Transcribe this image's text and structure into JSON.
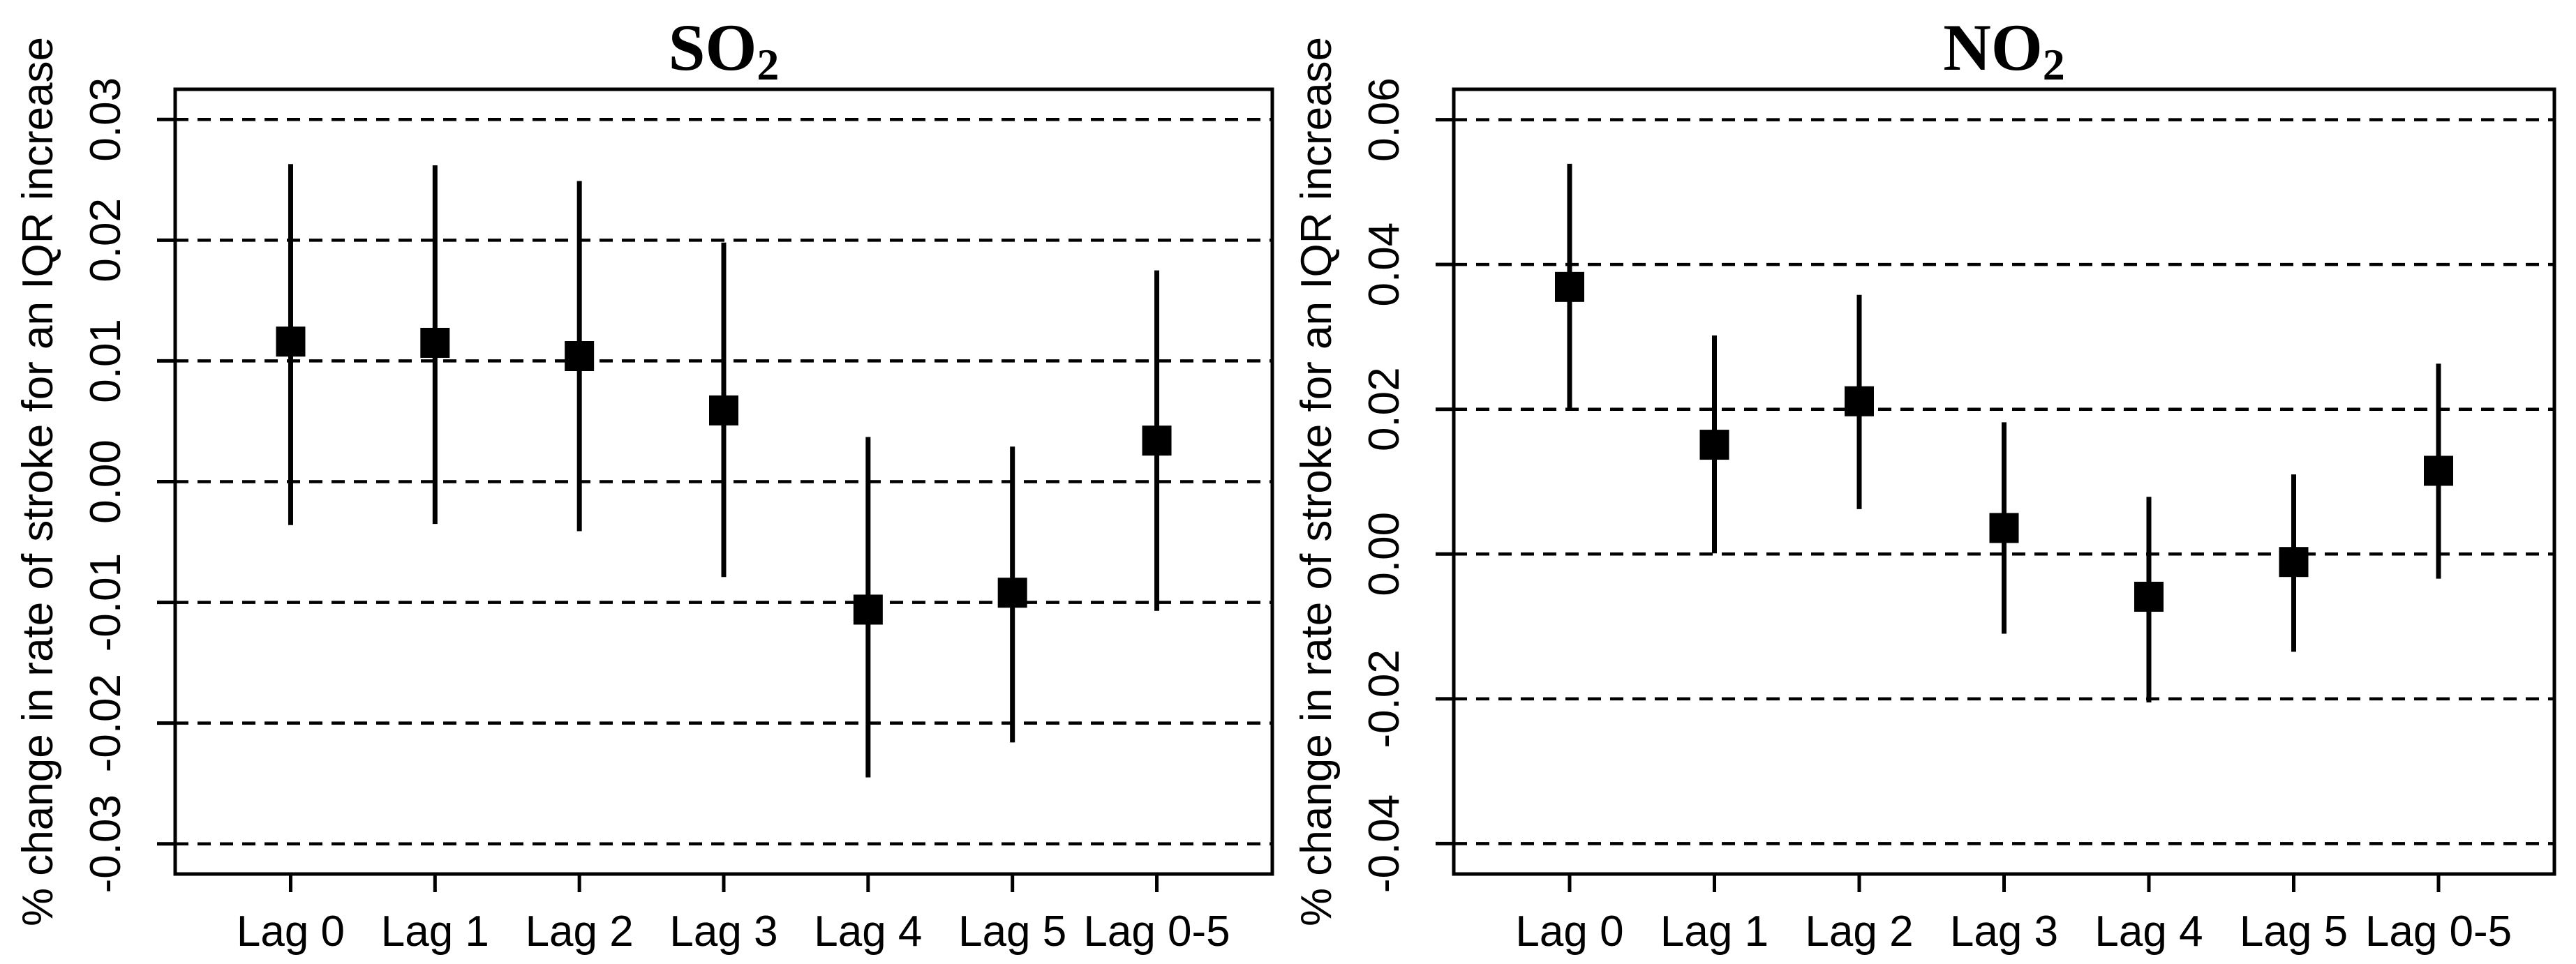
{
  "colors": {
    "ink": "#000000",
    "background": "#ffffff"
  },
  "chart_data": [
    {
      "type": "scatter",
      "panel_id": "so2",
      "title": "SO2",
      "title_base": "SO",
      "title_subscript": "2",
      "ylabel": "% change in rate of stroke for an IQR increase",
      "xlabel": "",
      "categories": [
        "Lag 0",
        "Lag 1",
        "Lag 2",
        "Lag 3",
        "Lag 4",
        "Lag 5",
        "Lag 0-5"
      ],
      "ylim": [
        -0.0325,
        0.0325
      ],
      "ytick_labels": [
        "0.03",
        "0.02",
        "0.01",
        "0.00",
        "-0.01",
        "-0.02",
        "-0.03"
      ],
      "ytick_values": [
        0.03,
        0.02,
        0.01,
        0.0,
        -0.01,
        -0.02,
        -0.03
      ],
      "grid": {
        "horizontal": true,
        "style": "dashed"
      },
      "legend": "none",
      "marker": "filled-square",
      "error_bars": "vertical-no-caps",
      "series": [
        {
          "name": "estimate",
          "values": [
            0.0116,
            0.0115,
            0.0104,
            0.0059,
            -0.0106,
            -0.0092,
            0.0034
          ]
        },
        {
          "name": "ci_lower",
          "values": [
            -0.0036,
            -0.0035,
            -0.0041,
            -0.0079,
            -0.0245,
            -0.0216,
            -0.0107
          ]
        },
        {
          "name": "ci_upper",
          "values": [
            0.0263,
            0.0262,
            0.0249,
            0.0198,
            0.0037,
            0.0029,
            0.0175
          ]
        }
      ]
    },
    {
      "type": "scatter",
      "panel_id": "no2",
      "title": "NO2",
      "title_base": "NO",
      "title_subscript": "2",
      "ylabel": "% change in rate of stroke for an IQR increase",
      "xlabel": "",
      "categories": [
        "Lag 0",
        "Lag 1",
        "Lag 2",
        "Lag 3",
        "Lag 4",
        "Lag 5",
        "Lag 0-5"
      ],
      "ylim": [
        -0.0442,
        0.0642
      ],
      "ytick_labels": [
        "0.06",
        "0.04",
        "0.02",
        "0.00",
        "-0.02",
        "-0.04"
      ],
      "ytick_values": [
        0.06,
        0.04,
        0.02,
        0.0,
        -0.02,
        -0.04
      ],
      "grid": {
        "horizontal": true,
        "style": "dashed"
      },
      "legend": "none",
      "marker": "filled-square",
      "error_bars": "vertical-no-caps",
      "series": [
        {
          "name": "estimate",
          "values": [
            0.0369,
            0.0151,
            0.0211,
            0.0036,
            -0.0059,
            -0.0011,
            0.0115
          ]
        },
        {
          "name": "ci_lower",
          "values": [
            0.0202,
            0.0001,
            0.0062,
            -0.011,
            -0.0205,
            -0.0135,
            -0.0034
          ]
        },
        {
          "name": "ci_upper",
          "values": [
            0.0539,
            0.0302,
            0.0358,
            0.0182,
            0.0079,
            0.011,
            0.0263
          ]
        }
      ]
    }
  ]
}
